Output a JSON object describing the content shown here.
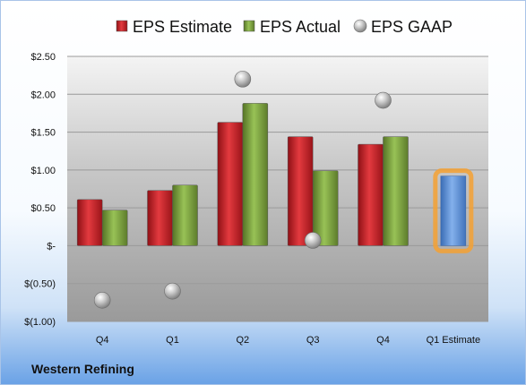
{
  "chart_data": {
    "type": "bar",
    "categories": [
      "Q4",
      "Q1",
      "Q2",
      "Q3",
      "Q4",
      "Q1 Estimate"
    ],
    "series": [
      {
        "name": "EPS Estimate",
        "kind": "bar",
        "color": "#c81e24",
        "values": [
          0.61,
          0.73,
          1.63,
          1.44,
          1.34,
          null
        ]
      },
      {
        "name": "EPS Actual",
        "kind": "bar",
        "color": "#7ba23f",
        "values": [
          0.47,
          0.8,
          1.88,
          0.99,
          1.44,
          null
        ]
      },
      {
        "name": "EPS GAAP",
        "kind": "marker",
        "color": "#a6a6a6",
        "values": [
          -0.72,
          -0.6,
          2.2,
          0.07,
          1.92,
          null
        ]
      }
    ],
    "estimate_bar": {
      "category": "Q1 Estimate",
      "value": 0.92,
      "color": "#5b8fd6",
      "glow": "#f5a133"
    },
    "yticks": [
      2.5,
      2.0,
      1.5,
      1.0,
      0.5,
      0,
      -0.5,
      -1.0
    ],
    "ytick_labels": [
      "$2.50",
      "$2.00",
      "$1.50",
      "$1.00",
      "$0.50",
      "$-",
      "$(0.50)",
      "$(1.00)"
    ],
    "ylim": [
      -1.0,
      2.5
    ],
    "grid": true,
    "legend_position": "top"
  },
  "footer": {
    "company": "Western Refining"
  }
}
